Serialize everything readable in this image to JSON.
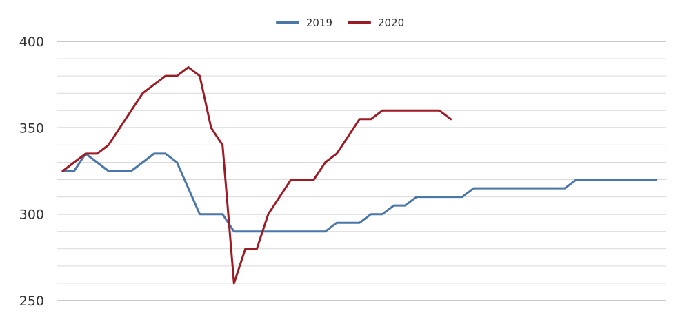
{
  "chart_data": {
    "type": "line",
    "title": "",
    "xlabel": "",
    "ylabel": "",
    "ylim": [
      250,
      400
    ],
    "y_ticks": [
      250,
      300,
      350,
      400
    ],
    "minor_grid_step": 10,
    "grid": true,
    "legend_position": "top-center",
    "series": [
      {
        "name": "2019",
        "color": "#4a76a8",
        "values": [
          325,
          325,
          335,
          330,
          325,
          325,
          325,
          330,
          335,
          335,
          330,
          315,
          300,
          300,
          300,
          290,
          290,
          290,
          290,
          290,
          290,
          290,
          290,
          290,
          295,
          295,
          295,
          300,
          300,
          305,
          305,
          310,
          310,
          310,
          310,
          310,
          315,
          315,
          315,
          315,
          315,
          315,
          315,
          315,
          315,
          320,
          320,
          320,
          320,
          320,
          320,
          320,
          320
        ]
      },
      {
        "name": "2020",
        "color": "#9b1c24",
        "values": [
          325,
          330,
          335,
          335,
          340,
          350,
          360,
          370,
          375,
          380,
          380,
          385,
          380,
          350,
          340,
          260,
          280,
          280,
          300,
          310,
          320,
          320,
          320,
          330,
          335,
          345,
          355,
          355,
          360,
          360,
          360,
          360,
          360,
          360,
          355
        ]
      }
    ]
  }
}
